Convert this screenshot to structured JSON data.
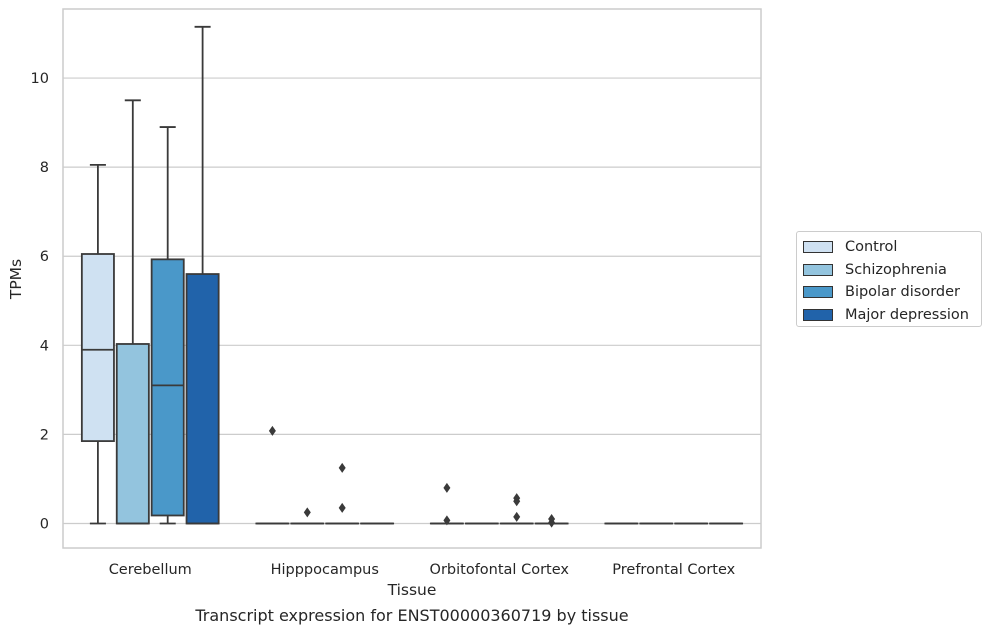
{
  "chart_data": {
    "type": "box",
    "title": "Transcript expression for ENST00000360719 by tissue",
    "xlabel": "Tissue",
    "ylabel": "TPMs",
    "ylim": [
      -0.55,
      11.55
    ],
    "yticks": [
      0,
      2,
      4,
      6,
      8,
      10
    ],
    "grid": "horizontal",
    "legend_position": "right",
    "categories": [
      "Cerebellum",
      "Hipppocampus",
      "Orbitofontal Cortex",
      "Prefrontal Cortex"
    ],
    "series": [
      {
        "name": "Control",
        "color": "#cfe1f2",
        "boxes": [
          {
            "whisker_low": 0,
            "q1": 1.85,
            "median": 3.9,
            "q3": 6.05,
            "whisker_high": 8.05,
            "outliers": []
          },
          {
            "whisker_low": 0,
            "q1": 0,
            "median": 0,
            "q3": 0,
            "whisker_high": 0,
            "outliers": [
              2.08
            ]
          },
          {
            "whisker_low": 0,
            "q1": 0,
            "median": 0,
            "q3": 0,
            "whisker_high": 0,
            "outliers": [
              0.8,
              0.07
            ]
          },
          {
            "whisker_low": 0,
            "q1": 0,
            "median": 0,
            "q3": 0,
            "whisker_high": 0,
            "outliers": []
          }
        ]
      },
      {
        "name": "Schizophrenia",
        "color": "#93c4de",
        "boxes": [
          {
            "whisker_low": 0,
            "q1": 0,
            "median": 0,
            "q3": 4.03,
            "whisker_high": 9.5,
            "outliers": []
          },
          {
            "whisker_low": 0,
            "q1": 0,
            "median": 0,
            "q3": 0,
            "whisker_high": 0,
            "outliers": [
              0.25
            ]
          },
          {
            "whisker_low": 0,
            "q1": 0,
            "median": 0,
            "q3": 0,
            "whisker_high": 0,
            "outliers": []
          },
          {
            "whisker_low": 0,
            "q1": 0,
            "median": 0,
            "q3": 0,
            "whisker_high": 0,
            "outliers": []
          }
        ]
      },
      {
        "name": "Bipolar disorder",
        "color": "#4a98c9",
        "boxes": [
          {
            "whisker_low": 0,
            "q1": 0.18,
            "median": 3.1,
            "q3": 5.93,
            "whisker_high": 8.9,
            "outliers": []
          },
          {
            "whisker_low": 0,
            "q1": 0,
            "median": 0,
            "q3": 0,
            "whisker_high": 0,
            "outliers": [
              1.25,
              0.35
            ]
          },
          {
            "whisker_low": 0,
            "q1": 0,
            "median": 0,
            "q3": 0,
            "whisker_high": 0,
            "outliers": [
              0.57,
              0.5,
              0.15
            ]
          },
          {
            "whisker_low": 0,
            "q1": 0,
            "median": 0,
            "q3": 0,
            "whisker_high": 0,
            "outliers": []
          }
        ]
      },
      {
        "name": "Major depression",
        "color": "#2163aa",
        "boxes": [
          {
            "whisker_low": 0,
            "q1": 0,
            "median": 0,
            "q3": 5.6,
            "whisker_high": 11.15,
            "outliers": []
          },
          {
            "whisker_low": 0,
            "q1": 0,
            "median": 0,
            "q3": 0,
            "whisker_high": 0,
            "outliers": []
          },
          {
            "whisker_low": 0,
            "q1": 0,
            "median": 0,
            "q3": 0,
            "whisker_high": 0,
            "outliers": [
              0.1,
              0.02
            ]
          },
          {
            "whisker_low": 0,
            "q1": 0,
            "median": 0,
            "q3": 0,
            "whisker_high": 0,
            "outliers": []
          }
        ]
      }
    ]
  }
}
